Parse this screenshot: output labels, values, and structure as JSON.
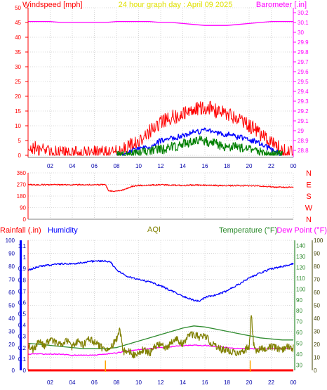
{
  "header": {
    "left_label": "Windspeed [mph]",
    "center_label": "24 hour graph day : April 09 2025",
    "right_label": "Barometer [.in]"
  },
  "colors": {
    "windspeed": "#ff0000",
    "wind_avg": "#0000ff",
    "wind_min": "#008000",
    "barometer": "#ff00ff",
    "direction": "#ff0000",
    "rainfall": "#ff0000",
    "humidity": "#0000ff",
    "aqi": "#808000",
    "temperature": "#2e8b2e",
    "dewpoint": "#ff00ff",
    "axis": "#808080",
    "grid": "#d8d8d8",
    "title_yellow": "#e0e000"
  },
  "chart_data": [
    {
      "type": "line",
      "title": "24 hour graph day : April 09 2025",
      "ylabel": "Windspeed [mph]",
      "y2label": "Barometer [.in]",
      "x_ticks": [
        "02",
        "04",
        "06",
        "08",
        "10",
        "12",
        "14",
        "16",
        "18",
        "20",
        "22",
        "00"
      ],
      "xlim": [
        0,
        24
      ],
      "ylim": [
        0,
        50
      ],
      "y_ticks": [
        0,
        5,
        10,
        15,
        20,
        25,
        30,
        35,
        40,
        45,
        50
      ],
      "y2lim": [
        28.75,
        30.25
      ],
      "y2_ticks": [
        "28.8",
        "28.9",
        "29",
        "29.1",
        "29.2",
        "29.3",
        "29.4",
        "29.5",
        "29.6",
        "29.7",
        "29.8",
        "29.9",
        "30",
        "30.1",
        "30.2"
      ],
      "grid": true,
      "series": [
        {
          "key": "gust",
          "axis": "y",
          "x": [
            0,
            0.5,
            1,
            1.5,
            2,
            3,
            4,
            5,
            6,
            7,
            8,
            8.5,
            9,
            9.5,
            10,
            10.5,
            11,
            11.5,
            12,
            12.5,
            13,
            13.5,
            14,
            14.5,
            15,
            15.5,
            16,
            16.5,
            17,
            17.5,
            18,
            18.5,
            19,
            19.5,
            20,
            20.5,
            21,
            21.5,
            22,
            22.5,
            23,
            23.5,
            24
          ],
          "y": [
            2,
            3,
            1,
            2,
            1,
            1,
            1,
            1,
            1,
            1,
            1,
            2,
            3,
            4,
            5,
            6,
            8,
            10,
            11,
            12,
            13,
            13,
            14,
            15,
            15,
            16,
            16,
            16,
            15,
            15,
            14,
            13,
            12,
            11,
            10,
            9,
            7,
            6,
            4,
            3,
            2,
            1,
            1
          ]
        },
        {
          "key": "avg",
          "axis": "y",
          "x": [
            8,
            9,
            10,
            10.5,
            11,
            11.5,
            12,
            12.5,
            13,
            13.5,
            14,
            14.5,
            15,
            15.5,
            16,
            16.5,
            17,
            17.5,
            18,
            18.5,
            19,
            19.5,
            20,
            20.5,
            21,
            21.5,
            22,
            22.5,
            23
          ],
          "y": [
            0,
            1,
            2,
            3,
            3,
            4,
            5,
            5,
            6,
            6,
            7,
            7,
            8,
            8,
            9,
            8,
            8,
            7,
            7,
            7,
            6,
            6,
            5,
            5,
            4,
            3,
            2,
            1,
            0
          ]
        },
        {
          "key": "lull",
          "axis": "y",
          "x": [
            8,
            9,
            10,
            10.5,
            11,
            11.5,
            12,
            12.5,
            13,
            13.5,
            14,
            14.5,
            15,
            15.5,
            16,
            16.5,
            17,
            17.5,
            18,
            18.5,
            19,
            19.5,
            20,
            20.5,
            21,
            21.5,
            22,
            22.5,
            23
          ],
          "y": [
            0,
            0,
            1,
            1,
            1,
            2,
            2,
            2,
            3,
            3,
            4,
            4,
            5,
            5,
            5,
            4,
            4,
            3,
            3,
            3,
            3,
            2,
            2,
            2,
            1,
            1,
            0,
            0,
            0
          ]
        },
        {
          "key": "barometer",
          "axis": "y2",
          "x": [
            0,
            1,
            2,
            3,
            4,
            5,
            6,
            7,
            8,
            9,
            10,
            11,
            12,
            13,
            14,
            15,
            16,
            17,
            18,
            19,
            20,
            21,
            22,
            23,
            24
          ],
          "y": [
            30.11,
            30.11,
            30.11,
            30.1,
            30.1,
            30.1,
            30.1,
            30.1,
            30.11,
            30.11,
            30.11,
            30.11,
            30.1,
            30.1,
            30.09,
            30.08,
            30.07,
            30.07,
            30.07,
            30.08,
            30.09,
            30.1,
            30.11,
            30.11,
            30.11
          ]
        }
      ]
    },
    {
      "type": "line",
      "ylabel": "",
      "x_ticks": [
        "02",
        "04",
        "06",
        "08",
        "10",
        "12",
        "14",
        "16",
        "18",
        "20",
        "22",
        "00"
      ],
      "xlim": [
        0,
        24
      ],
      "ylim": [
        0,
        360
      ],
      "y_ticks": [
        0,
        90,
        180,
        270,
        360
      ],
      "right_labels": [
        "N",
        "W",
        "S",
        "E",
        "N"
      ],
      "grid": true,
      "series": [
        {
          "key": "direction",
          "x": [
            0,
            1,
            2,
            3,
            4,
            5,
            6,
            7,
            7.3,
            8,
            8.5,
            9,
            9.5,
            10,
            11,
            12,
            13,
            14,
            15,
            16,
            17,
            18,
            19,
            20,
            21,
            22,
            23,
            24
          ],
          "y": [
            268,
            268,
            268,
            268,
            268,
            268,
            268,
            268,
            218,
            218,
            225,
            240,
            258,
            262,
            265,
            268,
            264,
            262,
            266,
            264,
            262,
            260,
            262,
            260,
            258,
            252,
            248,
            248
          ]
        }
      ]
    },
    {
      "type": "line",
      "x_ticks": [
        "02",
        "04",
        "06",
        "08",
        "10",
        "12",
        "14",
        "16",
        "18",
        "20",
        "22",
        "00"
      ],
      "xlim": [
        0,
        24
      ],
      "labels": {
        "rainfall": "Rainfall (.in)",
        "humidity": "Humidity",
        "aqi": "AQI",
        "temperature": "Temperature (°F)",
        "dewpoint": "Dew Point (°F)"
      },
      "humidity_axis": {
        "lim": [
          0,
          100
        ],
        "ticks": [
          0,
          10,
          20,
          30,
          40,
          50,
          60,
          70,
          80,
          90,
          100
        ]
      },
      "rain_axis": {
        "lim": [
          0,
          1.15
        ],
        "ticks": [
          "0",
          "0.1",
          "0.2",
          "0.3",
          "0.4",
          "0.5",
          "0.6",
          "0.7",
          "0.8",
          "0.9",
          "1",
          "1.1"
        ]
      },
      "temp_axis": {
        "lim": [
          25,
          145
        ],
        "ticks": [
          30,
          40,
          50,
          60,
          70,
          80,
          90,
          100,
          110,
          120,
          130,
          140
        ]
      },
      "aqi_axis": {
        "lim": [
          0,
          100
        ],
        "ticks": [
          0,
          10,
          20,
          30,
          40,
          50,
          60,
          70,
          80,
          90,
          100
        ]
      },
      "grid": true,
      "series": [
        {
          "key": "humidity",
          "axis": "humidity",
          "x": [
            0,
            1,
            2,
            3,
            4,
            5,
            6,
            7,
            7.5,
            8,
            9,
            10,
            11,
            12,
            13,
            14,
            15,
            15.5,
            16,
            17,
            18,
            19,
            20,
            21,
            22,
            23,
            24
          ],
          "y": [
            77,
            80,
            81,
            82,
            82,
            83,
            84,
            84,
            83,
            77,
            72,
            70,
            68,
            65,
            61,
            57,
            54,
            53,
            56,
            58,
            61,
            66,
            71,
            75,
            78,
            80,
            82
          ]
        },
        {
          "key": "temperature",
          "axis": "temp",
          "x": [
            0,
            1,
            2,
            3,
            4,
            5,
            6,
            7,
            8,
            9,
            10,
            11,
            12,
            13,
            14,
            15,
            16,
            17,
            18,
            19,
            20,
            21,
            22,
            23,
            24
          ],
          "y": [
            50,
            49,
            48,
            47,
            46,
            45,
            45,
            45,
            46,
            49,
            52,
            55,
            58,
            61,
            64,
            66,
            65,
            63,
            61,
            59,
            57,
            55,
            54,
            53,
            53
          ]
        },
        {
          "key": "dewpoint",
          "axis": "temp",
          "x": [
            0,
            1,
            2,
            3,
            4,
            5,
            6,
            7,
            8,
            9,
            10,
            11,
            12,
            13,
            14,
            15,
            16,
            17,
            18,
            19,
            20,
            21,
            22,
            23,
            24
          ],
          "y": [
            40,
            40,
            40,
            40,
            39,
            39,
            39,
            40,
            41,
            43,
            44,
            45,
            46,
            47,
            48,
            48,
            48,
            47,
            46,
            45,
            45,
            45,
            45,
            45,
            45
          ]
        },
        {
          "key": "aqi",
          "axis": "aqi",
          "x": [
            0,
            0.5,
            1,
            1.5,
            2,
            2.5,
            3,
            3.5,
            4,
            4.5,
            5,
            5.5,
            6,
            6.5,
            7,
            7.5,
            8,
            8.3,
            8.6,
            9,
            9.5,
            10,
            10.5,
            11,
            11.5,
            12,
            12.5,
            13,
            13.5,
            14,
            14.5,
            15,
            15.5,
            16,
            16.5,
            17,
            17.5,
            18,
            18.5,
            19,
            19.5,
            20,
            20.2,
            20.4,
            20.6,
            21,
            21.5,
            22,
            22.5,
            23,
            23.5,
            24
          ],
          "y": [
            18,
            16,
            22,
            19,
            24,
            21,
            20,
            23,
            18,
            22,
            20,
            24,
            22,
            19,
            15,
            18,
            24,
            32,
            14,
            16,
            12,
            14,
            16,
            13,
            18,
            20,
            17,
            22,
            24,
            20,
            26,
            28,
            25,
            27,
            21,
            18,
            16,
            15,
            14,
            13,
            15,
            18,
            43,
            20,
            15,
            17,
            16,
            18,
            17,
            16,
            18,
            17
          ]
        },
        {
          "key": "rainfall",
          "axis": "rain",
          "x": [
            0,
            24
          ],
          "y": [
            0,
            0
          ]
        }
      ],
      "markers": [
        {
          "key": "orange-tick-1",
          "x": 7.0
        },
        {
          "key": "orange-tick-2",
          "x": 20.1
        }
      ]
    }
  ],
  "panel2_right_labels": [
    "N",
    "W",
    "S",
    "E",
    "N"
  ]
}
